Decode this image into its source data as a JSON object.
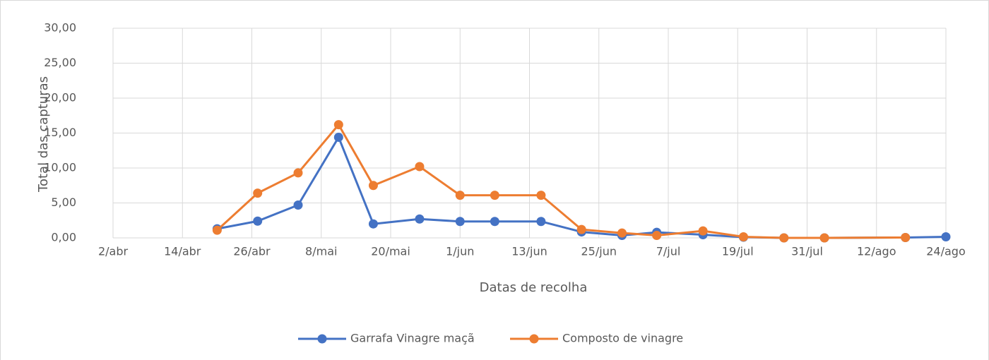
{
  "chart_data": {
    "type": "line",
    "x_label": "Datas de recolha",
    "y_label": "Total das capturas",
    "x": [
      "04-20",
      "04-27",
      "05-04",
      "05-11",
      "05-17",
      "05-25",
      "06-01",
      "06-07",
      "06-15",
      "06-22",
      "06-29",
      "07-05",
      "07-13",
      "07-20",
      "07-27",
      "08-03",
      "08-17",
      "08-24"
    ],
    "series": [
      {
        "name": "Garrafa Vinagre maçã",
        "color": "#4472c4",
        "values": [
          1.3,
          2.4,
          4.7,
          14.4,
          2.0,
          2.7,
          2.35,
          2.35,
          2.35,
          0.85,
          0.35,
          0.8,
          0.45,
          0.1,
          0.0,
          0.0,
          0.05,
          0.15
        ]
      },
      {
        "name": "Composto de vinagre",
        "color": "#ed7d31",
        "values": [
          1.1,
          6.4,
          9.3,
          16.2,
          7.5,
          10.2,
          6.1,
          6.1,
          6.1,
          1.2,
          0.7,
          0.35,
          1.0,
          0.15,
          0.0,
          0.0,
          0.05,
          null
        ]
      }
    ],
    "xlim": [
      "04-02",
      "08-24"
    ],
    "xticks": [
      {
        "value": "04-02",
        "label": "2/abr"
      },
      {
        "value": "04-14",
        "label": "14/abr"
      },
      {
        "value": "04-26",
        "label": "26/abr"
      },
      {
        "value": "05-08",
        "label": "8/mai"
      },
      {
        "value": "05-20",
        "label": "20/mai"
      },
      {
        "value": "06-01",
        "label": "1/jun"
      },
      {
        "value": "06-13",
        "label": "13/jun"
      },
      {
        "value": "06-25",
        "label": "25/jun"
      },
      {
        "value": "07-07",
        "label": "7/jul"
      },
      {
        "value": "07-19",
        "label": "19/jul"
      },
      {
        "value": "07-31",
        "label": "31/jul"
      },
      {
        "value": "08-12",
        "label": "12/ago"
      },
      {
        "value": "08-24",
        "label": "24/ago"
      }
    ],
    "ylim": [
      0,
      30
    ],
    "yticks": [
      {
        "value": 0,
        "label": "0,00"
      },
      {
        "value": 5,
        "label": "5,00"
      },
      {
        "value": 10,
        "label": "10,00"
      },
      {
        "value": 15,
        "label": "15,00"
      },
      {
        "value": 20,
        "label": "20,00"
      },
      {
        "value": 25,
        "label": "25,00"
      },
      {
        "value": 30,
        "label": "30,00"
      }
    ],
    "grid": true,
    "legend": "bottom"
  }
}
